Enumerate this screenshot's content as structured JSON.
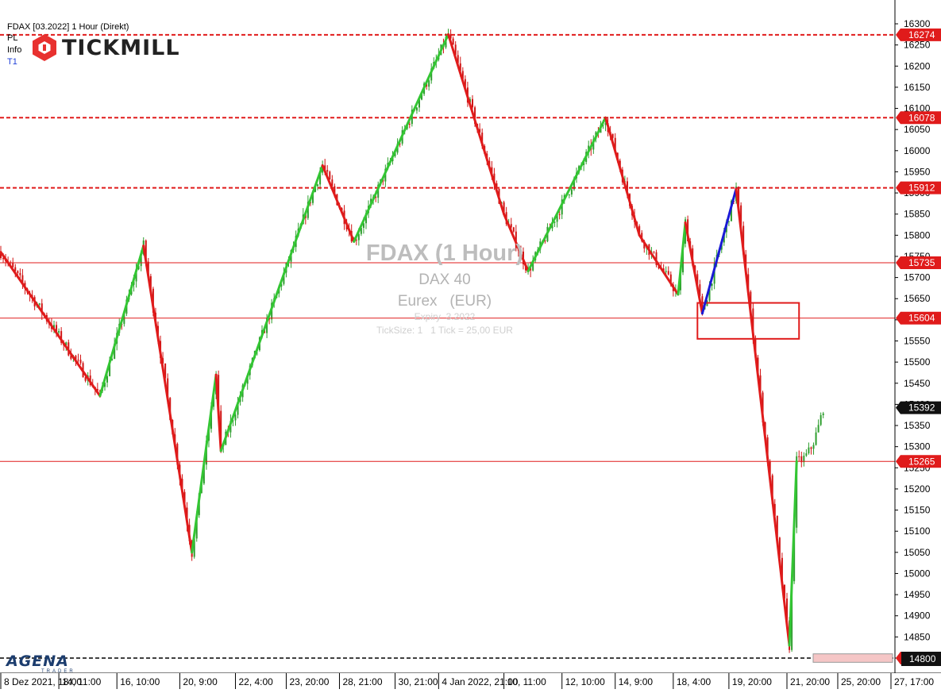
{
  "header": {
    "instrument": "FDAX [03.2022] 1 Hour (Direkt)",
    "lines": [
      "PL",
      "Info",
      "T1"
    ],
    "line_colors": [
      "#000000",
      "#000000",
      "#1f3fd8"
    ]
  },
  "logo": {
    "text": "TICKMILL",
    "mark_color": "#e8312f"
  },
  "footer": {
    "brand": "AGENA",
    "sub": "TRADER"
  },
  "watermark": {
    "title": "FDAX (1 Hour)",
    "name": "DAX 40",
    "exchange": "Eurex   (EUR)",
    "expiry": "Expiry  3.2022",
    "ticksize": "TickSize: 1   1 Tick = 25,00 EUR"
  },
  "colors": {
    "up": "#2e9e2e",
    "down": "#d11414",
    "zigzag_up": "#33c633",
    "zigzag_down": "#e01b1b",
    "zigzag_current": "#1a1ad6",
    "level": "#e01b1b",
    "grid": "#e6e6e6"
  },
  "chart_data": {
    "type": "line",
    "title": "FDAX (1 Hour)",
    "ylim": [
      14760,
      16340
    ],
    "y_ticks": [
      14800,
      14850,
      14900,
      14950,
      15000,
      15050,
      15100,
      15150,
      15200,
      15250,
      15300,
      15350,
      15400,
      15450,
      15500,
      15550,
      15600,
      15650,
      15700,
      15750,
      15800,
      15850,
      15900,
      15950,
      16000,
      16050,
      16100,
      16150,
      16200,
      16250,
      16300
    ],
    "x_tick_labels": [
      "8 Dez 2021, 18:00",
      "14, 11:00",
      "16, 10:00",
      "20, 9:00",
      "22, 4:00",
      "23, 20:00",
      "28, 21:00",
      "30, 21:00",
      "4 Jan 2022, 21:00",
      "10, 11:00",
      "12, 10:00",
      "14, 9:00",
      "18, 4:00",
      "19, 20:00",
      "21, 20:00",
      "25, 20:00",
      "27, 17:00"
    ],
    "x_tick_index": [
      0,
      24,
      48,
      74,
      97,
      118,
      140,
      163,
      181,
      208,
      232,
      254,
      278,
      301,
      325,
      346,
      368
    ],
    "bar_count": 369,
    "last_bar_index": 340,
    "current_price": 15392,
    "price_labels": [
      16274,
      16078,
      15912,
      15735,
      15604,
      15265,
      14800
    ],
    "horizontal_levels": [
      {
        "price": 16274,
        "style": "dashed"
      },
      {
        "price": 16078,
        "style": "dashed"
      },
      {
        "price": 15912,
        "style": "dashed"
      },
      {
        "price": 15735,
        "style": "solid"
      },
      {
        "price": 15604,
        "style": "solid"
      },
      {
        "price": 15265,
        "style": "solid"
      }
    ],
    "zigzag": [
      {
        "i": 0,
        "p": 15760
      },
      {
        "i": 41,
        "p": 15420
      },
      {
        "i": 59,
        "p": 15775
      },
      {
        "i": 79,
        "p": 15050
      },
      {
        "i": 89,
        "p": 15470
      },
      {
        "i": 91,
        "p": 15290
      },
      {
        "i": 133,
        "p": 15965
      },
      {
        "i": 146,
        "p": 15785
      },
      {
        "i": 185,
        "p": 16275
      },
      {
        "i": 208,
        "p": 15850
      },
      {
        "i": 218,
        "p": 15715
      },
      {
        "i": 250,
        "p": 16078
      },
      {
        "i": 264,
        "p": 15800
      },
      {
        "i": 280,
        "p": 15660
      },
      {
        "i": 283,
        "p": 15830
      },
      {
        "i": 290,
        "p": 15615
      },
      {
        "i": 304,
        "p": 15910
      },
      {
        "i": 326,
        "p": 14830
      },
      {
        "i": 329,
        "p": 15265
      }
    ],
    "zigzag_colors": [
      "down",
      "up",
      "down",
      "up",
      "down",
      "up",
      "down",
      "up",
      "down",
      "down",
      "up",
      "down",
      "down",
      "up",
      "down",
      "current",
      "down",
      "up"
    ],
    "box": {
      "i0": 288,
      "i1": 330,
      "p0": 15640,
      "p1": 15555
    },
    "bottom_band": [
      14790,
      14810
    ]
  }
}
